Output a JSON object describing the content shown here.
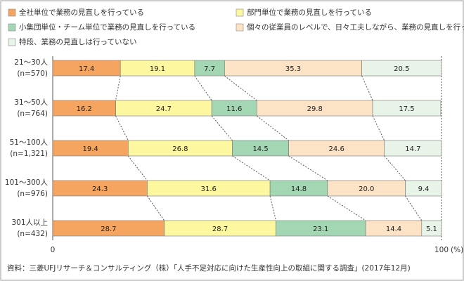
{
  "chart_data": {
    "type": "stacked-barh",
    "categories": [
      "21～30人",
      "31～50人",
      "51～100人",
      "101～300人",
      "301人以上"
    ],
    "n_labels": [
      "(n=570)",
      "(n=764)",
      "(n=1,321)",
      "(n=976)",
      "(n=432)"
    ],
    "series": [
      {
        "name": "全社単位で業務の見直しを行っている",
        "color": "#f5a55f",
        "values": [
          17.4,
          16.2,
          19.4,
          24.3,
          28.7
        ]
      },
      {
        "name": "部門単位で業務の見直しを行っている",
        "color": "#fdf7a0",
        "values": [
          19.1,
          24.7,
          26.8,
          31.6,
          28.7
        ]
      },
      {
        "name": "小集団単位・チーム単位で業務の見直しを行っている",
        "color": "#a3d6b3",
        "values": [
          7.7,
          11.6,
          14.5,
          14.8,
          23.1
        ]
      },
      {
        "name": "個々の従業員のレベルで、日々工夫しながら、業務の見直しを行っている",
        "color": "#fde3c6",
        "values": [
          35.3,
          29.8,
          24.6,
          20.0,
          14.4
        ],
        "value_labels": [
          "35.3",
          "29.8",
          "24.6",
          "20.0",
          "14.4"
        ]
      },
      {
        "name": "特段、業務の見直しは行っていない",
        "color": "#e8f4e8",
        "values": [
          20.5,
          17.5,
          14.7,
          9.4,
          5.1
        ]
      }
    ],
    "xlim": [
      0,
      100
    ],
    "xticks": [
      0,
      100
    ],
    "x_unit": "(%)",
    "source": "資料：三菱UFJリサーチ＆コンサルティング（株）「人手不足対応に向けた生産性向上の取組に関する調査」(2017年12月)"
  }
}
